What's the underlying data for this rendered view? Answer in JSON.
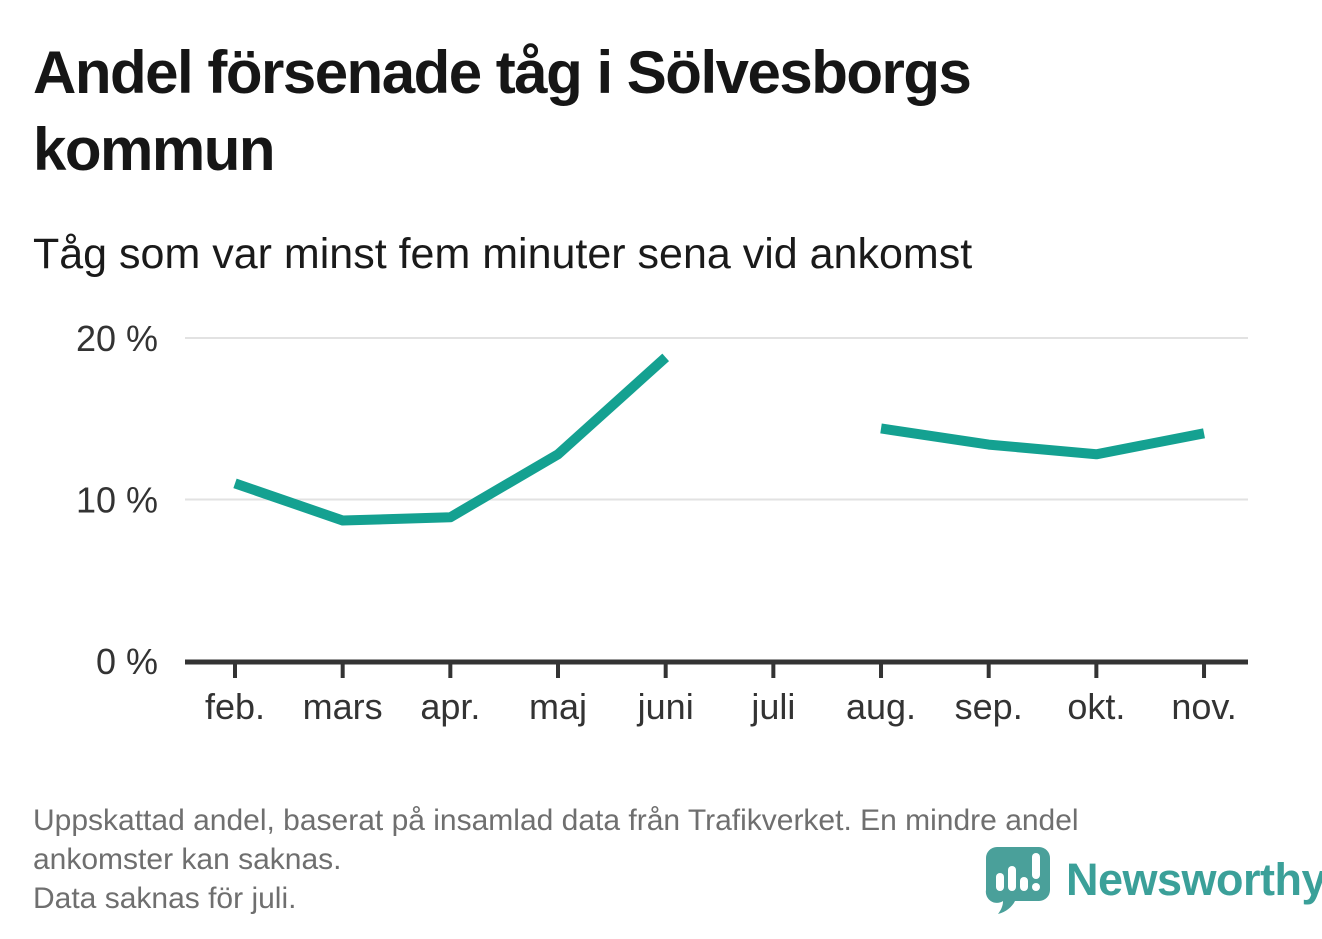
{
  "header": {
    "title": "Andel försenade tåg i Sölvesborgs kommun",
    "subtitle": "Tåg som var minst fem minuter sena vid ankomst"
  },
  "chart_data": {
    "type": "line",
    "categories": [
      "feb.",
      "mars",
      "apr.",
      "maj",
      "juni",
      "juli",
      "aug.",
      "sep.",
      "okt.",
      "nov."
    ],
    "values": [
      11.0,
      8.7,
      8.9,
      12.8,
      18.8,
      null,
      14.4,
      13.4,
      12.8,
      14.1
    ],
    "series_name": "Andel försenade tåg (minst 5 min sena vid ankomst)",
    "unit": "%",
    "title": "Andel försenade tåg i Sölvesborgs kommun",
    "xlabel": "",
    "ylabel": "",
    "ylim": [
      0,
      20
    ],
    "yticks": [
      {
        "value": 0,
        "label": "0 %"
      },
      {
        "value": 10,
        "label": "10 %"
      },
      {
        "value": 20,
        "label": "20 %"
      }
    ],
    "grid": true,
    "legend": "none",
    "missing_data_category": "juli",
    "colors": {
      "line": "#14A191",
      "gridline": "#e2e2e2",
      "axis": "#333333",
      "tick_text": "#333333"
    }
  },
  "footer": {
    "notes": [
      "Uppskattad andel, baserat på insamlad data från Trafikverket. En mindre andel",
      "ankomster kan saknas.",
      "Data saknas för juli."
    ],
    "brand": {
      "name": "Newsworthy",
      "icon": "chart-speech-bubble-icon",
      "icon_color": "#4AA09A",
      "text_color": "#3BA099"
    }
  }
}
